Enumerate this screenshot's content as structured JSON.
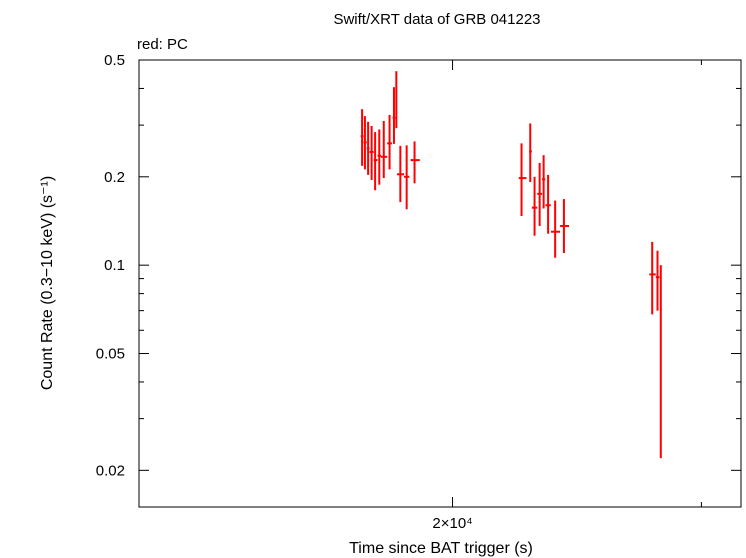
{
  "chart_data": {
    "type": "scatter",
    "title": "Swift/XRT data of GRB 041223",
    "subtitle": "red: PC",
    "xlabel": "Time since BAT trigger (s)",
    "ylabel": "Count Rate (0.3−10 keV) (s⁻¹)",
    "x_scale": "log",
    "y_scale": "log",
    "xlim": [
      12000,
      32000
    ],
    "ylim": [
      0.015,
      0.5
    ],
    "x_ticks": [
      {
        "value": 20000,
        "label": "2×10⁴"
      }
    ],
    "y_ticks": [
      {
        "value": 0.5,
        "label": "0.5"
      },
      {
        "value": 0.2,
        "label": "0.2"
      },
      {
        "value": 0.1,
        "label": "0.1"
      },
      {
        "value": 0.05,
        "label": "0.05"
      },
      {
        "value": 0.02,
        "label": "0.02"
      }
    ],
    "series": [
      {
        "name": "PC",
        "color": "#ff0000",
        "points": [
          {
            "x": 17260,
            "y": 0.275,
            "xlo": 17220,
            "xhi": 17300,
            "ylo": 0.218,
            "yhi": 0.34
          },
          {
            "x": 17340,
            "y": 0.262,
            "xlo": 17300,
            "xhi": 17390,
            "ylo": 0.212,
            "yhi": 0.322
          },
          {
            "x": 17430,
            "y": 0.25,
            "xlo": 17390,
            "xhi": 17470,
            "ylo": 0.203,
            "yhi": 0.308
          },
          {
            "x": 17530,
            "y": 0.243,
            "xlo": 17470,
            "xhi": 17590,
            "ylo": 0.195,
            "yhi": 0.298
          },
          {
            "x": 17630,
            "y": 0.228,
            "xlo": 17590,
            "xhi": 17700,
            "ylo": 0.18,
            "yhi": 0.284
          },
          {
            "x": 17750,
            "y": 0.236,
            "xlo": 17700,
            "xhi": 17800,
            "ylo": 0.188,
            "yhi": 0.29
          },
          {
            "x": 17880,
            "y": 0.234,
            "xlo": 17800,
            "xhi": 17980,
            "ylo": 0.198,
            "yhi": 0.31
          },
          {
            "x": 18050,
            "y": 0.26,
            "xlo": 17980,
            "xhi": 18120,
            "ylo": 0.212,
            "yhi": 0.325
          },
          {
            "x": 18180,
            "y": 0.318,
            "xlo": 18140,
            "xhi": 18220,
            "ylo": 0.259,
            "yhi": 0.404
          },
          {
            "x": 18250,
            "y": 0.358,
            "xlo": 18230,
            "xhi": 18270,
            "ylo": 0.293,
            "yhi": 0.458
          },
          {
            "x": 18370,
            "y": 0.204,
            "xlo": 18270,
            "xhi": 18480,
            "ylo": 0.164,
            "yhi": 0.255
          },
          {
            "x": 18560,
            "y": 0.2,
            "xlo": 18480,
            "xhi": 18640,
            "ylo": 0.155,
            "yhi": 0.256
          },
          {
            "x": 18800,
            "y": 0.228,
            "xlo": 18680,
            "xhi": 18960,
            "ylo": 0.19,
            "yhi": 0.264
          },
          {
            "x": 22380,
            "y": 0.198,
            "xlo": 22280,
            "xhi": 22560,
            "ylo": 0.147,
            "yhi": 0.26
          },
          {
            "x": 22700,
            "y": 0.244,
            "xlo": 22660,
            "xhi": 22760,
            "ylo": 0.192,
            "yhi": 0.304
          },
          {
            "x": 22860,
            "y": 0.157,
            "xlo": 22760,
            "xhi": 22960,
            "ylo": 0.126,
            "yhi": 0.2
          },
          {
            "x": 23050,
            "y": 0.175,
            "xlo": 22960,
            "xhi": 23140,
            "ylo": 0.136,
            "yhi": 0.223
          },
          {
            "x": 23200,
            "y": 0.196,
            "xlo": 23140,
            "xhi": 23260,
            "ylo": 0.156,
            "yhi": 0.237
          },
          {
            "x": 23370,
            "y": 0.16,
            "xlo": 23270,
            "xhi": 23470,
            "ylo": 0.128,
            "yhi": 0.203
          },
          {
            "x": 23640,
            "y": 0.13,
            "xlo": 23480,
            "xhi": 23830,
            "ylo": 0.106,
            "yhi": 0.166
          },
          {
            "x": 23980,
            "y": 0.136,
            "xlo": 23830,
            "xhi": 24180,
            "ylo": 0.11,
            "yhi": 0.168
          },
          {
            "x": 27690,
            "y": 0.093,
            "xlo": 27560,
            "xhi": 27850,
            "ylo": 0.068,
            "yhi": 0.12
          },
          {
            "x": 27930,
            "y": 0.091,
            "xlo": 27850,
            "xhi": 28020,
            "ylo": 0.07,
            "yhi": 0.112
          },
          {
            "x": 28080,
            "y": 0.052,
            "xlo": 28040,
            "xhi": 28110,
            "ylo": 0.022,
            "yhi": 0.1
          }
        ]
      }
    ]
  }
}
